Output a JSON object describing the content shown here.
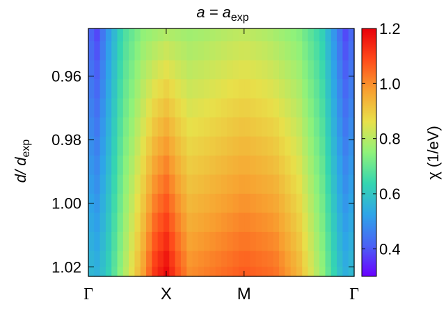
{
  "chart_data": {
    "type": "heatmap",
    "title": {
      "base": "a = a",
      "sub": "exp"
    },
    "xlabel": "",
    "ylabel": {
      "base": "d/ d",
      "sub": "exp"
    },
    "x_ticks": [
      "Γ",
      "X",
      "M",
      "Γ"
    ],
    "x_path": [
      {
        "label": "Γ",
        "pos": 0.0
      },
      {
        "label": "X",
        "pos": 1.0
      },
      {
        "label": "M",
        "pos": 2.0
      },
      {
        "label": "Γ",
        "pos": 3.414
      }
    ],
    "y_ticks": [
      0.96,
      0.98,
      1.0,
      1.02
    ],
    "y_tick_labels": [
      "0.96",
      "0.98",
      "1.00",
      "1.02"
    ],
    "ylim": [
      0.945,
      1.023
    ],
    "y_rows": [
      0.946,
      0.952,
      0.958,
      0.964,
      0.97,
      0.976,
      0.982,
      0.988,
      0.994,
      1.0,
      1.006,
      1.012,
      1.018,
      1.022
    ],
    "colorbar": {
      "label": "χ (1/eV)",
      "range": [
        0.3,
        1.2
      ],
      "ticks": [
        0.4,
        0.6,
        0.8,
        1.0,
        1.2
      ],
      "tick_labels": [
        "0.4",
        "0.6",
        "0.8",
        "1.0",
        "1.2"
      ],
      "colormap": [
        "#6a00ff",
        "#4a63f5",
        "#2ea5e8",
        "#35d6b0",
        "#8ff27a",
        "#e8e04a",
        "#f8a030",
        "#ff4a1a",
        "#e8000a"
      ]
    },
    "profile_low_d": [
      {
        "x": 0.0,
        "v": 0.44
      },
      {
        "x": 0.1,
        "v": 0.37
      },
      {
        "x": 0.25,
        "v": 0.5
      },
      {
        "x": 0.45,
        "v": 0.66
      },
      {
        "x": 0.7,
        "v": 0.75
      },
      {
        "x": 1.0,
        "v": 0.79
      },
      {
        "x": 1.3,
        "v": 0.77
      },
      {
        "x": 1.5,
        "v": 0.78
      },
      {
        "x": 1.8,
        "v": 0.8
      },
      {
        "x": 2.0,
        "v": 0.81
      },
      {
        "x": 2.3,
        "v": 0.79
      },
      {
        "x": 2.7,
        "v": 0.74
      },
      {
        "x": 3.0,
        "v": 0.63
      },
      {
        "x": 3.2,
        "v": 0.46
      },
      {
        "x": 3.3,
        "v": 0.38
      },
      {
        "x": 3.414,
        "v": 0.44
      }
    ],
    "profile_high_d": [
      {
        "x": 0.0,
        "v": 0.58
      },
      {
        "x": 0.1,
        "v": 0.55
      },
      {
        "x": 0.25,
        "v": 0.62
      },
      {
        "x": 0.45,
        "v": 0.78
      },
      {
        "x": 0.7,
        "v": 0.97
      },
      {
        "x": 0.85,
        "v": 1.12
      },
      {
        "x": 1.0,
        "v": 1.19
      },
      {
        "x": 1.15,
        "v": 1.08
      },
      {
        "x": 1.3,
        "v": 1.0
      },
      {
        "x": 1.6,
        "v": 1.03
      },
      {
        "x": 2.0,
        "v": 1.07
      },
      {
        "x": 2.4,
        "v": 1.04
      },
      {
        "x": 2.7,
        "v": 0.94
      },
      {
        "x": 3.0,
        "v": 0.76
      },
      {
        "x": 3.2,
        "v": 0.6
      },
      {
        "x": 3.3,
        "v": 0.55
      },
      {
        "x": 3.414,
        "v": 0.58
      }
    ]
  }
}
